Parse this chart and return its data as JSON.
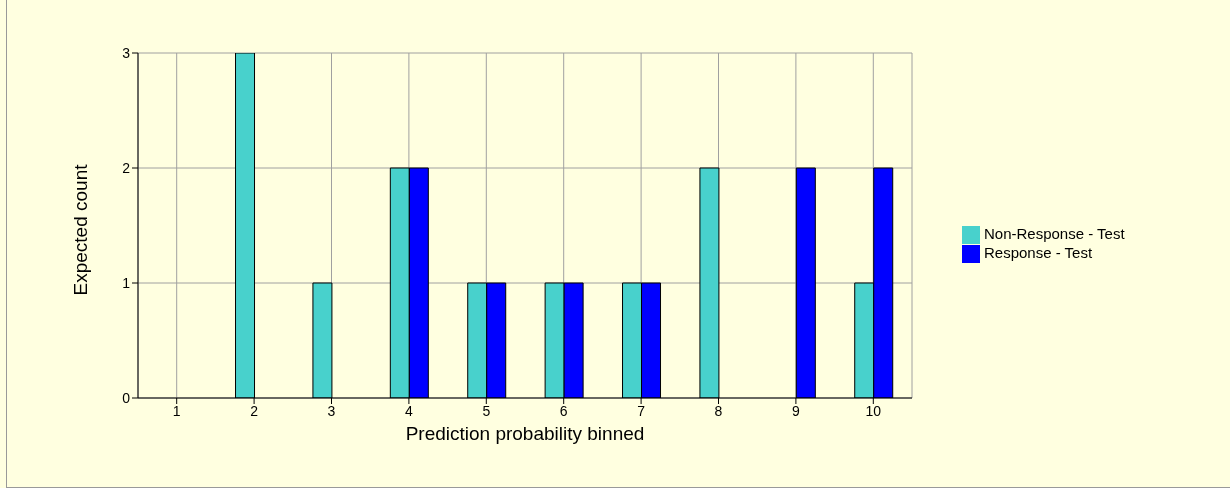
{
  "chart_data": {
    "type": "bar",
    "xlabel": "Prediction probability binned",
    "ylabel": "Expected count",
    "categories": [
      "1",
      "2",
      "3",
      "4",
      "5",
      "6",
      "7",
      "8",
      "9",
      "10"
    ],
    "series": [
      {
        "name": "Non-Response - Test",
        "color": "#48d1cc",
        "values": [
          0,
          3,
          1,
          2,
          1,
          1,
          1,
          2,
          0,
          1
        ]
      },
      {
        "name": "Response - Test",
        "color": "#0000ff",
        "values": [
          0,
          0,
          0,
          2,
          1,
          1,
          1,
          0,
          2,
          2
        ]
      }
    ],
    "ylim": [
      0,
      3
    ],
    "yticks": [
      0,
      1,
      2,
      3
    ],
    "grid": true,
    "legend": "right"
  }
}
